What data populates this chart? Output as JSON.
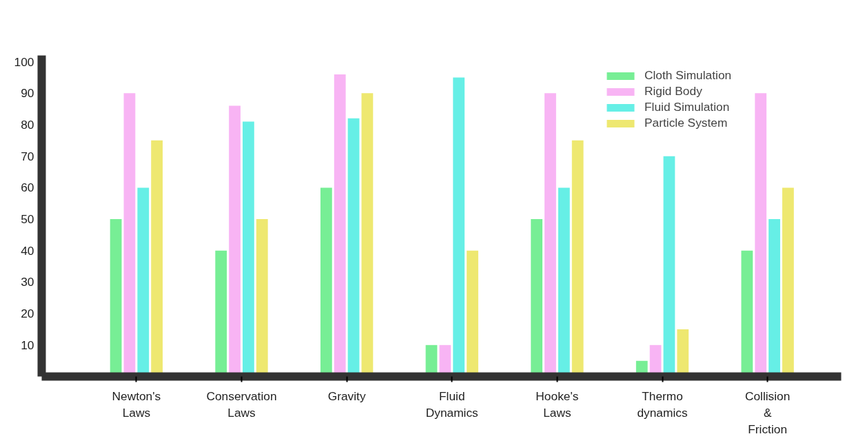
{
  "chart_data": {
    "type": "bar",
    "categories": [
      "Newton's\nLaws",
      "Conservation\nLaws",
      "Gravity",
      "Fluid\nDynamics",
      "Hooke's\nLaws",
      "Thermo\ndynamics",
      "Collision\n&\nFriction"
    ],
    "series": [
      {
        "name": "Cloth Simulation",
        "color": "#77ee95",
        "values": [
          50,
          40,
          60,
          10,
          50,
          5,
          40
        ]
      },
      {
        "name": "Rigid Body",
        "color": "#f8b4f4",
        "values": [
          90,
          86,
          96,
          10,
          90,
          10,
          90
        ]
      },
      {
        "name": "Fluid Simulation",
        "color": "#66efe6",
        "values": [
          60,
          81,
          82,
          95,
          60,
          70,
          50
        ]
      },
      {
        "name": "Particle System",
        "color": "#eee870",
        "values": [
          75,
          50,
          90,
          40,
          75,
          15,
          60
        ]
      }
    ],
    "ylim": [
      0,
      102
    ],
    "yticks": [
      10,
      20,
      30,
      40,
      50,
      60,
      70,
      80,
      90,
      100
    ],
    "grid": false,
    "legend": "top right"
  }
}
